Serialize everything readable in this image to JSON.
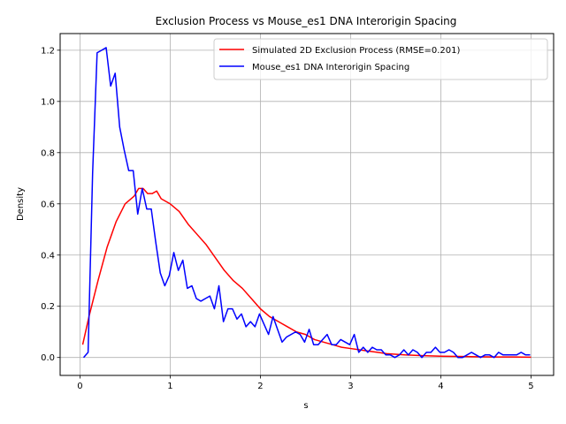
{
  "chart_data": {
    "type": "line",
    "title": "Exclusion Process vs Mouse_es1 DNA Interorigin Spacing",
    "xlabel": "s",
    "ylabel": "Density",
    "xlim": [
      -0.22,
      5.25
    ],
    "ylim": [
      -0.07,
      1.265
    ],
    "xticks": [
      "0",
      "1",
      "2",
      "3",
      "4",
      "5"
    ],
    "yticks": [
      "0.0",
      "0.2",
      "0.4",
      "0.6",
      "0.8",
      "1.0",
      "1.2"
    ],
    "grid": true,
    "legend_position": "top-right",
    "series": [
      {
        "name": "Simulated 2D Exclusion Process (RMSE=0.201)",
        "color": "#ff0000",
        "points": [
          [
            0.03,
            0.05
          ],
          [
            0.1,
            0.16
          ],
          [
            0.2,
            0.3
          ],
          [
            0.3,
            0.43
          ],
          [
            0.4,
            0.53
          ],
          [
            0.5,
            0.6
          ],
          [
            0.6,
            0.63
          ],
          [
            0.65,
            0.66
          ],
          [
            0.7,
            0.66
          ],
          [
            0.75,
            0.64
          ],
          [
            0.8,
            0.64
          ],
          [
            0.85,
            0.65
          ],
          [
            0.9,
            0.62
          ],
          [
            1.0,
            0.6
          ],
          [
            1.1,
            0.57
          ],
          [
            1.2,
            0.52
          ],
          [
            1.3,
            0.48
          ],
          [
            1.4,
            0.44
          ],
          [
            1.5,
            0.39
          ],
          [
            1.6,
            0.34
          ],
          [
            1.7,
            0.3
          ],
          [
            1.8,
            0.27
          ],
          [
            1.9,
            0.23
          ],
          [
            2.0,
            0.19
          ],
          [
            2.1,
            0.16
          ],
          [
            2.2,
            0.14
          ],
          [
            2.3,
            0.12
          ],
          [
            2.4,
            0.1
          ],
          [
            2.5,
            0.09
          ],
          [
            2.6,
            0.07
          ],
          [
            2.7,
            0.06
          ],
          [
            2.8,
            0.05
          ],
          [
            2.9,
            0.04
          ],
          [
            3.0,
            0.035
          ],
          [
            3.1,
            0.03
          ],
          [
            3.2,
            0.025
          ],
          [
            3.3,
            0.02
          ],
          [
            3.4,
            0.015
          ],
          [
            3.6,
            0.01
          ],
          [
            3.8,
            0.007
          ],
          [
            4.0,
            0.005
          ],
          [
            4.2,
            0.004
          ],
          [
            4.4,
            0.003
          ],
          [
            4.6,
            0.002
          ],
          [
            4.8,
            0.002
          ],
          [
            5.0,
            0.001
          ]
        ]
      },
      {
        "name": "Mouse_es1 DNA Interorigin Spacing",
        "color": "#0000ff",
        "points": [
          [
            0.04,
            0.0
          ],
          [
            0.09,
            0.02
          ],
          [
            0.14,
            0.72
          ],
          [
            0.19,
            1.19
          ],
          [
            0.24,
            1.2
          ],
          [
            0.29,
            1.21
          ],
          [
            0.34,
            1.06
          ],
          [
            0.39,
            1.11
          ],
          [
            0.44,
            0.9
          ],
          [
            0.49,
            0.81
          ],
          [
            0.54,
            0.73
          ],
          [
            0.59,
            0.73
          ],
          [
            0.64,
            0.56
          ],
          [
            0.69,
            0.66
          ],
          [
            0.74,
            0.58
          ],
          [
            0.79,
            0.58
          ],
          [
            0.84,
            0.45
          ],
          [
            0.89,
            0.33
          ],
          [
            0.94,
            0.28
          ],
          [
            0.99,
            0.32
          ],
          [
            1.04,
            0.41
          ],
          [
            1.09,
            0.34
          ],
          [
            1.14,
            0.38
          ],
          [
            1.19,
            0.27
          ],
          [
            1.24,
            0.28
          ],
          [
            1.29,
            0.23
          ],
          [
            1.34,
            0.22
          ],
          [
            1.39,
            0.23
          ],
          [
            1.44,
            0.24
          ],
          [
            1.49,
            0.19
          ],
          [
            1.54,
            0.28
          ],
          [
            1.59,
            0.14
          ],
          [
            1.64,
            0.19
          ],
          [
            1.69,
            0.19
          ],
          [
            1.74,
            0.15
          ],
          [
            1.79,
            0.17
          ],
          [
            1.84,
            0.12
          ],
          [
            1.89,
            0.14
          ],
          [
            1.94,
            0.12
          ],
          [
            1.99,
            0.17
          ],
          [
            2.04,
            0.13
          ],
          [
            2.09,
            0.09
          ],
          [
            2.14,
            0.16
          ],
          [
            2.19,
            0.11
          ],
          [
            2.24,
            0.06
          ],
          [
            2.29,
            0.08
          ],
          [
            2.34,
            0.09
          ],
          [
            2.39,
            0.1
          ],
          [
            2.44,
            0.09
          ],
          [
            2.49,
            0.06
          ],
          [
            2.54,
            0.11
          ],
          [
            2.59,
            0.05
          ],
          [
            2.64,
            0.05
          ],
          [
            2.69,
            0.07
          ],
          [
            2.74,
            0.09
          ],
          [
            2.79,
            0.05
          ],
          [
            2.84,
            0.05
          ],
          [
            2.89,
            0.07
          ],
          [
            2.94,
            0.06
          ],
          [
            2.99,
            0.05
          ],
          [
            3.04,
            0.09
          ],
          [
            3.09,
            0.02
          ],
          [
            3.14,
            0.04
          ],
          [
            3.19,
            0.02
          ],
          [
            3.24,
            0.04
          ],
          [
            3.29,
            0.03
          ],
          [
            3.34,
            0.03
          ],
          [
            3.39,
            0.01
          ],
          [
            3.44,
            0.01
          ],
          [
            3.49,
            0.0
          ],
          [
            3.54,
            0.01
          ],
          [
            3.59,
            0.03
          ],
          [
            3.64,
            0.01
          ],
          [
            3.69,
            0.03
          ],
          [
            3.74,
            0.02
          ],
          [
            3.79,
            0.0
          ],
          [
            3.84,
            0.02
          ],
          [
            3.89,
            0.02
          ],
          [
            3.94,
            0.04
          ],
          [
            3.99,
            0.02
          ],
          [
            4.04,
            0.02
          ],
          [
            4.09,
            0.03
          ],
          [
            4.14,
            0.02
          ],
          [
            4.19,
            0.0
          ],
          [
            4.24,
            0.0
          ],
          [
            4.29,
            0.01
          ],
          [
            4.34,
            0.02
          ],
          [
            4.39,
            0.01
          ],
          [
            4.44,
            0.0
          ],
          [
            4.49,
            0.01
          ],
          [
            4.54,
            0.01
          ],
          [
            4.59,
            0.0
          ],
          [
            4.64,
            0.02
          ],
          [
            4.69,
            0.01
          ],
          [
            4.74,
            0.01
          ],
          [
            4.79,
            0.01
          ],
          [
            4.84,
            0.01
          ],
          [
            4.89,
            0.02
          ],
          [
            4.94,
            0.01
          ],
          [
            4.99,
            0.01
          ]
        ]
      }
    ]
  }
}
